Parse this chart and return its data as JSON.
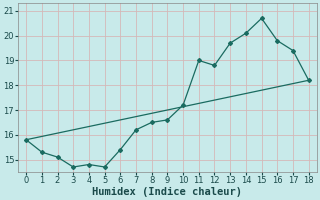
{
  "xlabel": "Humidex (Indice chaleur)",
  "ylabel": "",
  "bg_color": "#c8eaea",
  "grid_color": "#b8d8d8",
  "line_color": "#1a6b60",
  "x_data": [
    0,
    1,
    2,
    3,
    4,
    5,
    6,
    7,
    8,
    9,
    10,
    11,
    12,
    13,
    14,
    15,
    16,
    17,
    18
  ],
  "y_data": [
    15.8,
    15.3,
    15.1,
    14.7,
    14.8,
    14.7,
    15.4,
    16.2,
    16.5,
    16.6,
    17.2,
    19.0,
    18.8,
    19.7,
    20.1,
    20.7,
    19.8,
    19.4,
    18.2
  ],
  "trend_x": [
    0,
    18
  ],
  "trend_y": [
    15.8,
    18.2
  ],
  "xlim": [
    -0.5,
    18.5
  ],
  "ylim": [
    14.5,
    21.3
  ],
  "yticks": [
    15,
    16,
    17,
    18,
    19,
    20,
    21
  ],
  "xticks": [
    0,
    1,
    2,
    3,
    4,
    5,
    6,
    7,
    8,
    9,
    10,
    11,
    12,
    13,
    14,
    15,
    16,
    17,
    18
  ],
  "tick_fontsize": 6,
  "label_fontsize": 7.5
}
